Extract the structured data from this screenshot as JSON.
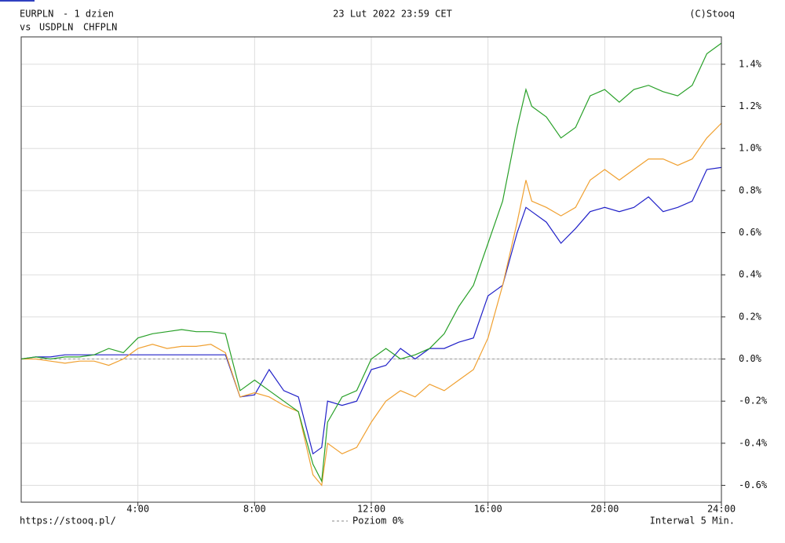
{
  "chart_data": {
    "type": "line",
    "title": "23 Lut 2022 23:59 CET",
    "subtitle": "- 1 dzien",
    "vs_label": "vs",
    "source": "(C)Stooq",
    "url": "https://stooq.pl/",
    "interval": "Interwal 5 Min.",
    "reference_line": {
      "value": 0,
      "label": "Poziom 0%"
    },
    "x": [
      0,
      0.5,
      1,
      1.5,
      2,
      2.5,
      3,
      3.5,
      4,
      4.5,
      5,
      5.5,
      6,
      6.5,
      7,
      7.5,
      8,
      8.5,
      9,
      9.5,
      10,
      10.3,
      10.5,
      11,
      11.5,
      12,
      12.5,
      13,
      13.5,
      14,
      14.5,
      15,
      15.5,
      16,
      16.5,
      17,
      17.3,
      17.5,
      18,
      18.5,
      19,
      19.5,
      20,
      20.5,
      21,
      21.5,
      22,
      22.5,
      23,
      23.5,
      24
    ],
    "series": [
      {
        "name": "EURPLN",
        "color": "#2020c8",
        "values": [
          0,
          0.01,
          0.01,
          0.02,
          0.02,
          0.02,
          0.02,
          0.02,
          0.02,
          0.02,
          0.02,
          0.02,
          0.02,
          0.02,
          0.02,
          -0.18,
          -0.17,
          -0.05,
          -0.15,
          -0.18,
          -0.45,
          -0.42,
          -0.2,
          -0.22,
          -0.2,
          -0.05,
          -0.03,
          0.05,
          0,
          0.05,
          0.05,
          0.08,
          0.1,
          0.3,
          0.35,
          0.6,
          0.72,
          0.7,
          0.65,
          0.55,
          0.62,
          0.7,
          0.72,
          0.7,
          0.72,
          0.77,
          0.7,
          0.72,
          0.75,
          0.9,
          0.91
        ]
      },
      {
        "name": "USDPLN",
        "color": "#f0a030",
        "values": [
          0,
          0,
          -0.01,
          -0.02,
          -0.01,
          -0.01,
          -0.03,
          0,
          0.05,
          0.07,
          0.05,
          0.06,
          0.06,
          0.07,
          0.03,
          -0.18,
          -0.16,
          -0.18,
          -0.22,
          -0.25,
          -0.55,
          -0.6,
          -0.4,
          -0.45,
          -0.42,
          -0.3,
          -0.2,
          -0.15,
          -0.18,
          -0.12,
          -0.15,
          -0.1,
          -0.05,
          0.1,
          0.35,
          0.65,
          0.85,
          0.75,
          0.72,
          0.68,
          0.72,
          0.85,
          0.9,
          0.85,
          0.9,
          0.95,
          0.95,
          0.92,
          0.95,
          1.05,
          1.12
        ]
      },
      {
        "name": "CHFPLN",
        "color": "#28a028",
        "values": [
          0,
          0.01,
          0,
          0.01,
          0.01,
          0.02,
          0.05,
          0.03,
          0.1,
          0.12,
          0.13,
          0.14,
          0.13,
          0.13,
          0.12,
          -0.15,
          -0.1,
          -0.15,
          -0.2,
          -0.25,
          -0.5,
          -0.58,
          -0.3,
          -0.18,
          -0.15,
          0,
          0.05,
          0,
          0.02,
          0.05,
          0.12,
          0.25,
          0.35,
          0.55,
          0.75,
          1.1,
          1.28,
          1.2,
          1.15,
          1.05,
          1.1,
          1.25,
          1.28,
          1.22,
          1.28,
          1.3,
          1.27,
          1.25,
          1.3,
          1.45,
          1.5
        ]
      }
    ],
    "xlim": [
      0,
      24
    ],
    "xticks": [
      {
        "value": 4,
        "label": "4:00"
      },
      {
        "value": 8,
        "label": "8:00"
      },
      {
        "value": 12,
        "label": "12:00"
      },
      {
        "value": 16,
        "label": "16:00"
      },
      {
        "value": 20,
        "label": "20:00"
      },
      {
        "value": 24,
        "label": "24:00"
      }
    ],
    "ylim": [
      -0.68,
      1.53
    ],
    "yticks": [
      {
        "value": -0.6,
        "label": "-0.6%"
      },
      {
        "value": -0.4,
        "label": "-0.4%"
      },
      {
        "value": -0.2,
        "label": "-0.2%"
      },
      {
        "value": 0,
        "label": "0.0%"
      },
      {
        "value": 0.2,
        "label": "0.2%"
      },
      {
        "value": 0.4,
        "label": "0.4%"
      },
      {
        "value": 0.6,
        "label": "0.6%"
      },
      {
        "value": 0.8,
        "label": "0.8%"
      },
      {
        "value": 1.0,
        "label": "1.0%"
      },
      {
        "value": 1.2,
        "label": "1.2%"
      },
      {
        "value": 1.4,
        "label": "1.4%"
      }
    ],
    "grid": true
  }
}
